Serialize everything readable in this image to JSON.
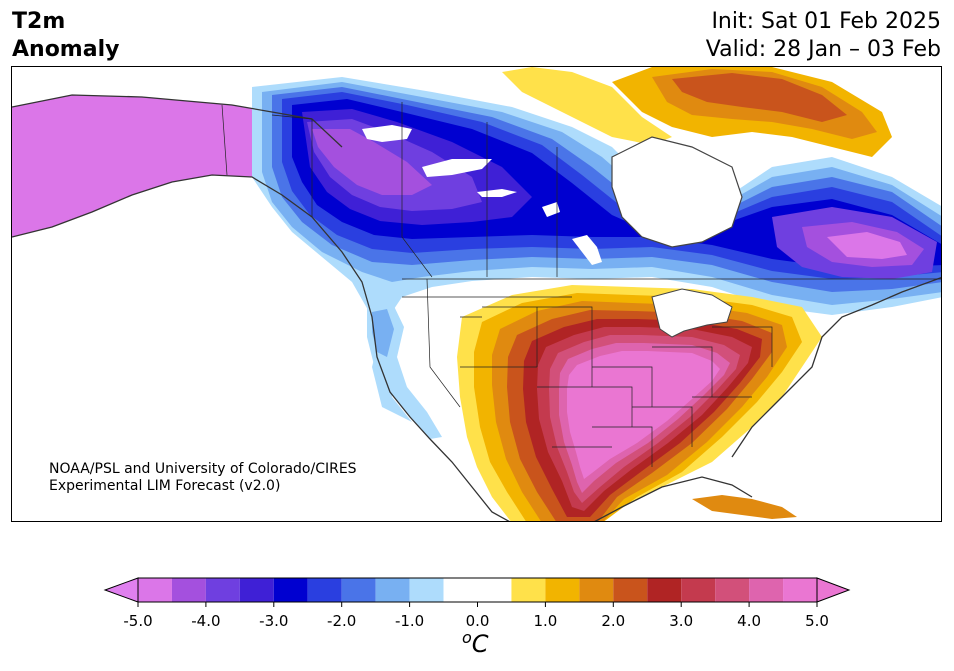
{
  "header": {
    "variable": "T2m",
    "field": "Anomaly",
    "init": "Init: Sat 01 Feb 2025",
    "valid": "Valid: 28 Jan – 03 Feb"
  },
  "credit": {
    "line1": "NOAA/PSL and University of Colorado/CIRES",
    "line2": "Experimental LIM Forecast (v2.0)"
  },
  "colorbar": {
    "unit": "C",
    "unit_prefix": "o",
    "ticks": [
      "-5.0",
      "-4.0",
      "-3.0",
      "-2.0",
      "-1.0",
      "0.0",
      "1.0",
      "2.0",
      "3.0",
      "4.0",
      "5.0"
    ],
    "levels": [
      -5.0,
      -4.5,
      -4.0,
      -3.5,
      -3.0,
      -2.5,
      -2.0,
      -1.5,
      -1.0,
      -0.5,
      0.5,
      1.0,
      1.5,
      2.0,
      2.5,
      3.0,
      3.5,
      4.0,
      4.5,
      5.0
    ],
    "colors": [
      "#db76e8",
      "#a450de",
      "#6f3fe0",
      "#3f20d6",
      "#0000d0",
      "#2a3fe0",
      "#4a74e8",
      "#78b0f2",
      "#aedcfc",
      "#ffffff",
      "#ffe14a",
      "#f2b400",
      "#e08a10",
      "#c9541c",
      "#b02424",
      "#c43a4e",
      "#d2507a",
      "#de64ae",
      "#ea76d2"
    ],
    "under_color": "#e080ef",
    "over_color": "#ea76d2"
  }
}
